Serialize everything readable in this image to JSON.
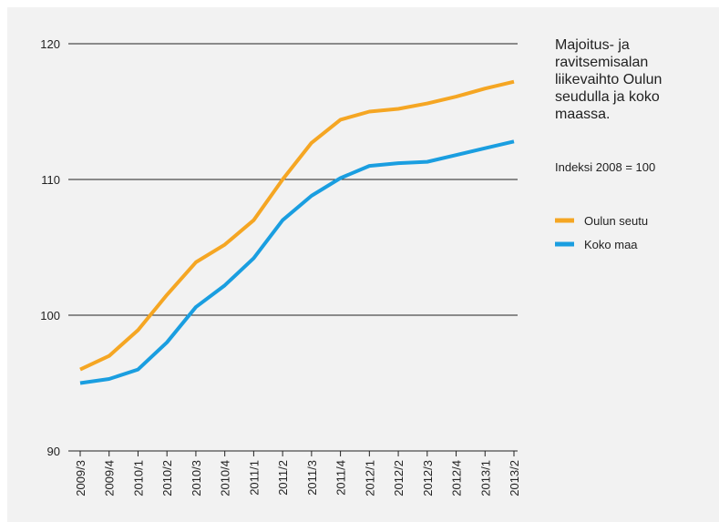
{
  "chart_data": {
    "type": "line",
    "title": "Majoitus- ja ravitsemisalan liikevaihto Oulun seudulla ja koko maassa.",
    "subtitle": "Indeksi 2008 = 100",
    "categories": [
      "2009/3",
      "2009/4",
      "2010/1",
      "2010/2",
      "2010/3",
      "2010/4",
      "2011/1",
      "2011/2",
      "2011/3",
      "2011/4",
      "2012/1",
      "2012/2",
      "2012/3",
      "2012/4",
      "2013/1",
      "2013/2"
    ],
    "series": [
      {
        "name": "Oulun seutu",
        "color": "#f5a623",
        "values": [
          96.0,
          97.0,
          98.9,
          101.5,
          103.9,
          105.2,
          107.0,
          110.0,
          112.7,
          114.4,
          115.0,
          115.2,
          115.6,
          116.1,
          116.7,
          117.2
        ]
      },
      {
        "name": "Koko maa",
        "color": "#1a9ee0",
        "values": [
          95.0,
          95.3,
          96.0,
          98.0,
          100.6,
          102.2,
          104.2,
          107.0,
          108.8,
          110.1,
          111.0,
          111.2,
          111.3,
          111.8,
          112.3,
          112.8
        ]
      }
    ],
    "ylim": [
      90,
      120
    ],
    "yticks": [
      90,
      100,
      110,
      120
    ],
    "grid": true,
    "legend": "right"
  }
}
